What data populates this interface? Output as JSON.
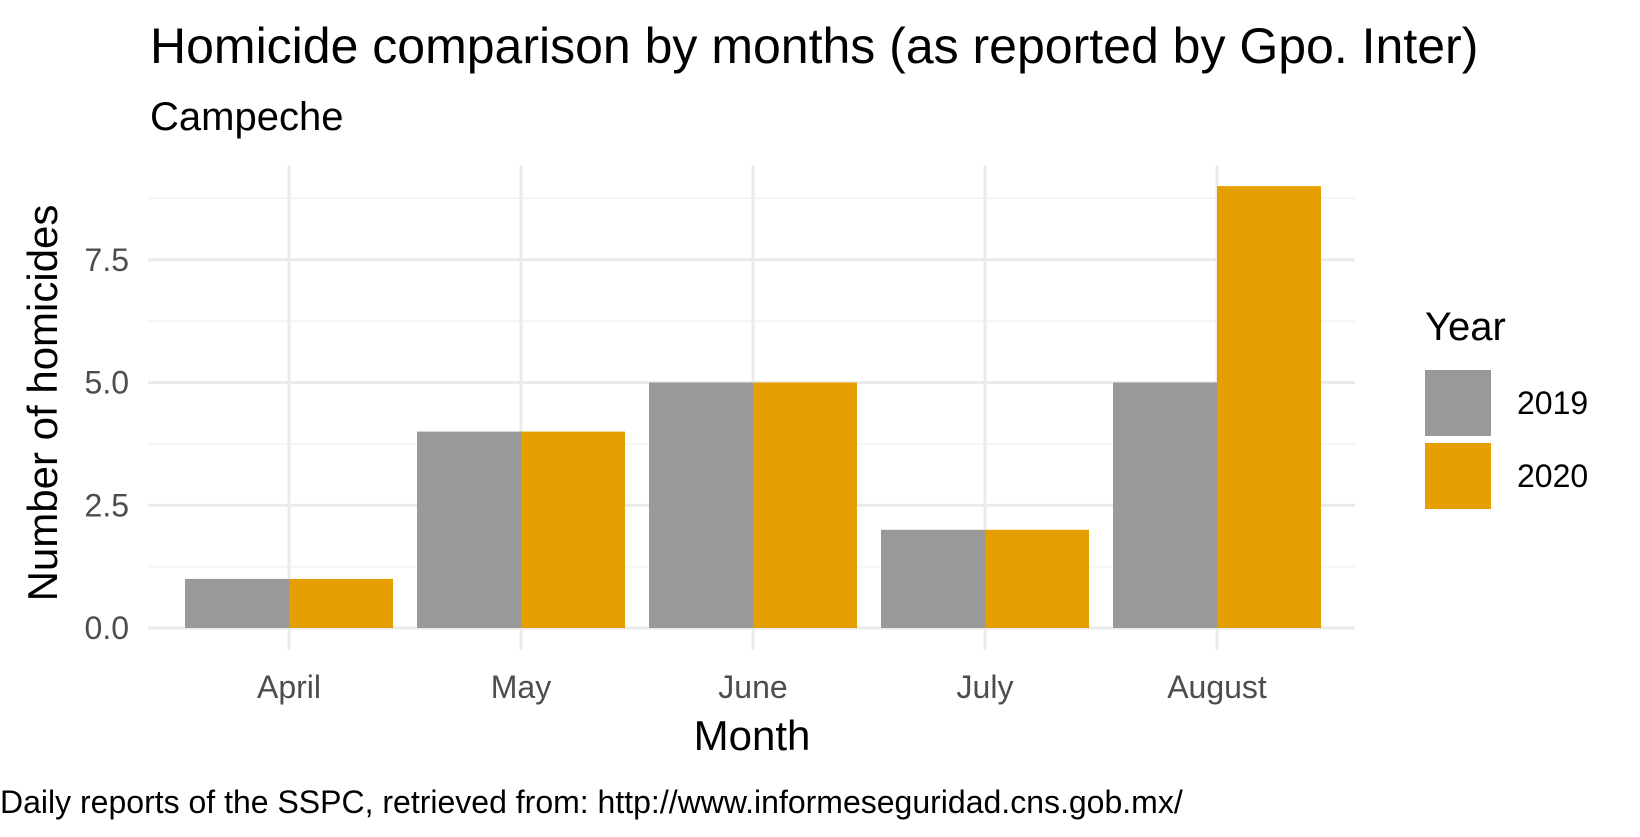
{
  "chart_data": {
    "type": "bar",
    "title": "Homicide comparison by months (as reported by Gpo. Inter)",
    "subtitle": "Campeche",
    "xlabel": "Month",
    "ylabel": "Number of homicides",
    "caption": "Daily reports of the SSPC, retrieved from: http://www.informeseguridad.cns.gob.mx/",
    "categories": [
      "April",
      "May",
      "June",
      "July",
      "August"
    ],
    "series": [
      {
        "name": "2019",
        "values": [
          1,
          4,
          5,
          2,
          5
        ],
        "color": "#999999"
      },
      {
        "name": "2020",
        "values": [
          1,
          4,
          5,
          2,
          9
        ],
        "color": "#E69F00"
      }
    ],
    "ylim": [
      0,
      9
    ],
    "yticks": [
      "0.0",
      "2.5",
      "5.0",
      "7.5"
    ],
    "grid": true,
    "legend": {
      "title": "Year",
      "placement": "right"
    }
  }
}
